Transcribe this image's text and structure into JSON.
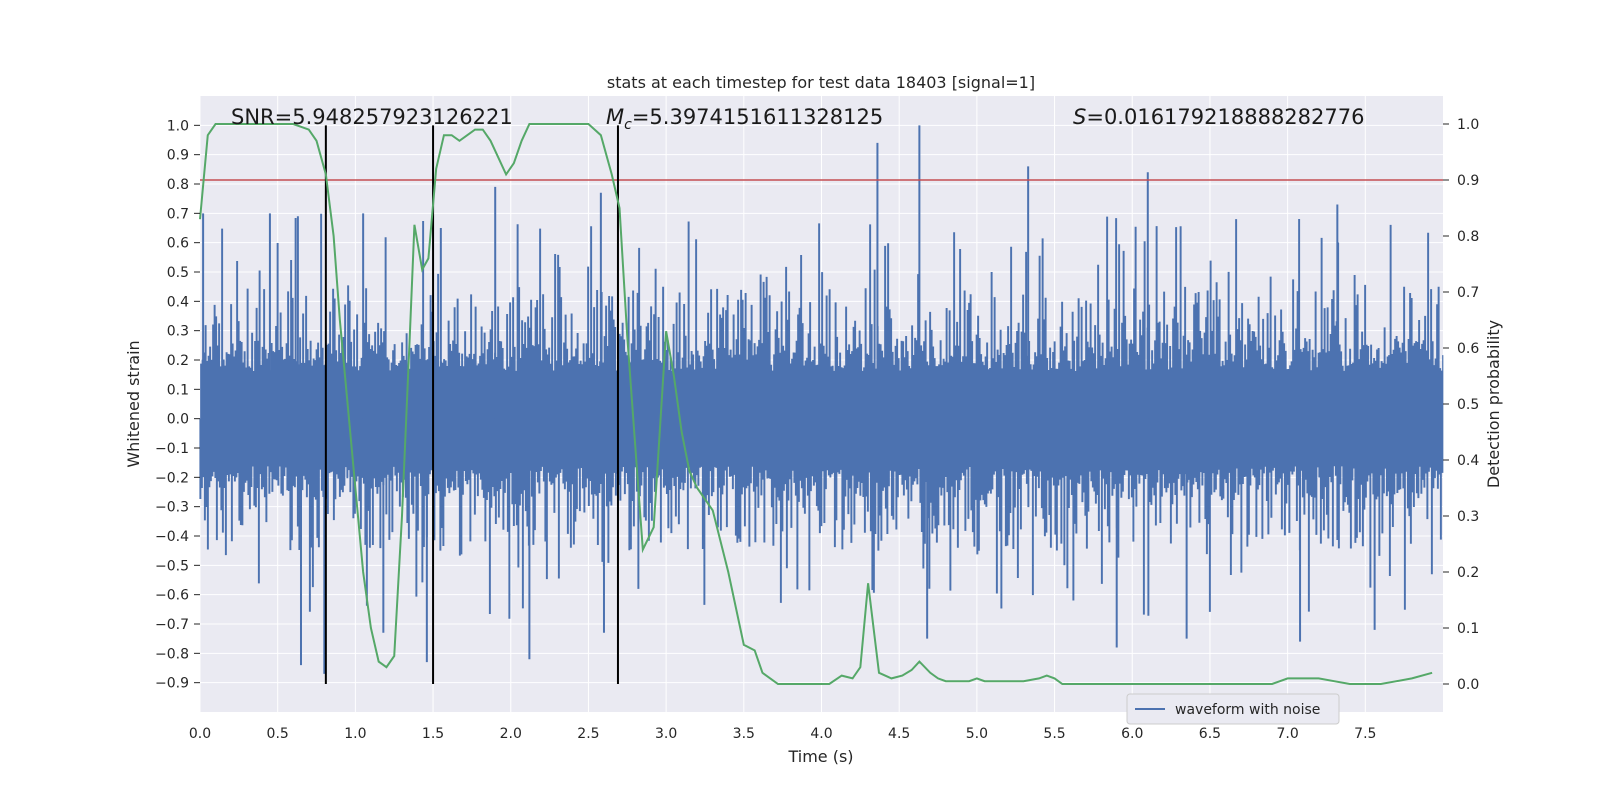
{
  "chart_data": {
    "type": "line",
    "title": "stats at each timestep for test data 18403 [signal=1]",
    "xlabel": "Time (s)",
    "ylabel": "Whitened strain",
    "y2label": "Detection probability",
    "xlim": [
      0,
      8
    ],
    "ylim": [
      -1.0,
      1.1
    ],
    "y2lim": [
      -0.05,
      1.05
    ],
    "xticks": [
      "0.0",
      "0.5",
      "1.0",
      "1.5",
      "2.0",
      "2.5",
      "3.0",
      "3.5",
      "4.0",
      "4.5",
      "5.0",
      "5.5",
      "6.0",
      "6.5",
      "7.0",
      "7.5"
    ],
    "yticks": [
      "-0.9",
      "-0.8",
      "-0.7",
      "-0.6",
      "-0.5",
      "-0.4",
      "-0.3",
      "-0.2",
      "-0.1",
      "0.0",
      "0.1",
      "0.2",
      "0.3",
      "0.4",
      "0.5",
      "0.6",
      "0.7",
      "0.8",
      "0.9",
      "1.0"
    ],
    "y2ticks": [
      "0.0",
      "0.1",
      "0.2",
      "0.3",
      "0.4",
      "0.5",
      "0.6",
      "0.7",
      "0.8",
      "0.9",
      "1.0"
    ],
    "grid": true,
    "legend_position": "lower-center-right",
    "annotations": {
      "snr": "SNR=5.948257923126221",
      "mc_symbol": "M",
      "mc_sub": "c",
      "mc_value": "=5.3974151611328125",
      "s_symbol": "S",
      "s_value": "=0.016179218888282776"
    },
    "threshold": 0.9,
    "event_times": [
      0.81,
      1.5,
      2.69
    ],
    "series": [
      {
        "name": "waveform with noise",
        "color": "#4c72b0",
        "kind": "noise",
        "envelope": {
          "core": 0.27,
          "typical": 0.45,
          "peak": 0.7
        },
        "spikes": [
          {
            "x": 0.02,
            "v": 0.7
          },
          {
            "x": 0.45,
            "v": 0.7
          },
          {
            "x": 0.63,
            "v": 0.69
          },
          {
            "x": 1.05,
            "v": 0.7
          },
          {
            "x": 1.55,
            "v": 0.65
          },
          {
            "x": 1.9,
            "v": 0.79
          },
          {
            "x": 2.58,
            "v": 0.77
          },
          {
            "x": 4.36,
            "v": 0.94
          },
          {
            "x": 4.63,
            "v": 1.0
          },
          {
            "x": 5.33,
            "v": 0.86
          },
          {
            "x": 6.1,
            "v": 0.84
          },
          {
            "x": 7.32,
            "v": 0.73
          },
          {
            "x": 0.65,
            "v": -0.84
          },
          {
            "x": 0.8,
            "v": -0.87
          },
          {
            "x": 1.46,
            "v": -0.83
          },
          {
            "x": 2.12,
            "v": -0.82
          },
          {
            "x": 2.6,
            "v": -0.73
          },
          {
            "x": 4.68,
            "v": -0.75
          },
          {
            "x": 5.9,
            "v": -0.78
          },
          {
            "x": 6.35,
            "v": -0.75
          },
          {
            "x": 7.08,
            "v": -0.76
          },
          {
            "x": 7.56,
            "v": -0.72
          },
          {
            "x": 1.18,
            "v": -0.73
          }
        ]
      },
      {
        "name": "",
        "color": "#55a868",
        "axis": "right",
        "x": [
          0.0,
          0.05,
          0.1,
          0.2,
          0.3,
          0.4,
          0.5,
          0.6,
          0.7,
          0.75,
          0.81,
          0.86,
          0.9,
          0.95,
          1.0,
          1.05,
          1.1,
          1.15,
          1.2,
          1.25,
          1.3,
          1.35,
          1.38,
          1.43,
          1.47,
          1.52,
          1.57,
          1.62,
          1.67,
          1.72,
          1.77,
          1.82,
          1.87,
          1.92,
          1.97,
          2.02,
          2.07,
          2.12,
          2.2,
          2.3,
          2.4,
          2.5,
          2.58,
          2.65,
          2.7,
          2.75,
          2.8,
          2.85,
          2.92,
          3.0,
          3.05,
          3.1,
          3.15,
          3.2,
          3.3,
          3.4,
          3.5,
          3.57,
          3.62,
          3.67,
          3.72,
          3.8,
          3.9,
          4.0,
          4.05,
          4.13,
          4.2,
          4.25,
          4.3,
          4.37,
          4.45,
          4.52,
          4.58,
          4.63,
          4.7,
          4.75,
          4.8,
          4.85,
          4.9,
          4.95,
          5.0,
          5.05,
          5.1,
          5.15,
          5.2,
          5.25,
          5.3,
          5.4,
          5.45,
          5.5,
          5.55,
          5.6,
          5.7,
          5.8,
          5.9,
          6.0,
          6.1,
          6.2,
          6.3,
          6.4,
          6.5,
          6.6,
          6.7,
          6.8,
          6.9,
          6.95,
          7.0,
          7.1,
          7.2,
          7.3,
          7.4,
          7.5,
          7.6,
          7.7,
          7.8,
          7.93
        ],
        "y": [
          0.83,
          0.98,
          1.0,
          1.0,
          1.0,
          1.0,
          1.0,
          1.0,
          0.99,
          0.97,
          0.91,
          0.8,
          0.65,
          0.5,
          0.35,
          0.2,
          0.1,
          0.04,
          0.03,
          0.05,
          0.3,
          0.62,
          0.82,
          0.74,
          0.76,
          0.92,
          0.98,
          0.98,
          0.97,
          0.98,
          0.99,
          0.99,
          0.97,
          0.94,
          0.91,
          0.93,
          0.97,
          1.0,
          1.0,
          1.0,
          1.0,
          1.0,
          0.98,
          0.91,
          0.85,
          0.62,
          0.43,
          0.24,
          0.28,
          0.63,
          0.55,
          0.45,
          0.38,
          0.35,
          0.31,
          0.2,
          0.07,
          0.06,
          0.02,
          0.01,
          0.0,
          0.0,
          0.0,
          0.0,
          0.0,
          0.015,
          0.01,
          0.03,
          0.18,
          0.02,
          0.01,
          0.015,
          0.025,
          0.04,
          0.02,
          0.01,
          0.005,
          0.005,
          0.005,
          0.005,
          0.01,
          0.005,
          0.005,
          0.005,
          0.005,
          0.005,
          0.005,
          0.01,
          0.015,
          0.01,
          0.0,
          0.0,
          0.0,
          0.0,
          0.0,
          0.0,
          0.0,
          0.0,
          0.0,
          0.0,
          0.0,
          0.0,
          0.0,
          0.0,
          0.0,
          0.005,
          0.01,
          0.01,
          0.01,
          0.005,
          0.0,
          0.0,
          0.0,
          0.005,
          0.01,
          0.02
        ]
      }
    ],
    "threshold_color": "#c44e52",
    "event_line_color": "#000000",
    "background_color": "#eaeaf2"
  }
}
